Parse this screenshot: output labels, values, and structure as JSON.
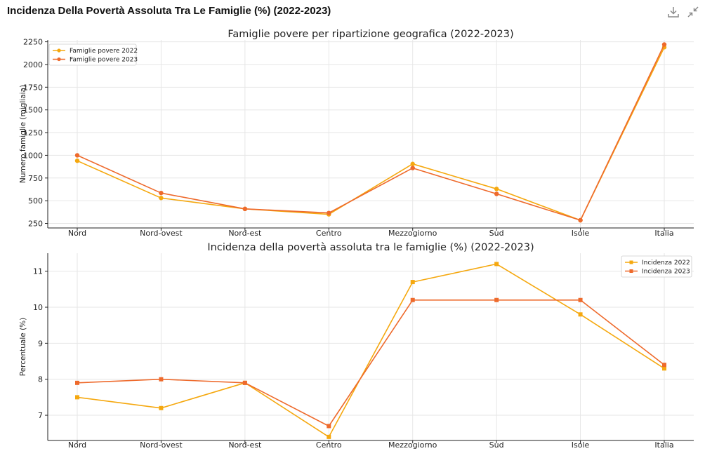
{
  "page": {
    "title": "Incidenza Della Povertà Assoluta Tra Le Famiglie (%) (2022-2023)"
  },
  "toolbar": {
    "download_icon": "download-icon",
    "collapse_icon": "collapse-icon"
  },
  "colors": {
    "series_2022": "#f5a80f",
    "series_2023": "#ee6a2c",
    "grid": "#e6e6e6",
    "axis": "#222222"
  },
  "chart_data": [
    {
      "type": "line",
      "title": "Famiglie povere per ripartizione geografica (2022-2023)",
      "xlabel": "",
      "ylabel": "Numero famiglie (migliaia)",
      "categories": [
        "Nord",
        "Nord-ovest",
        "Nord-est",
        "Centro",
        "Mezzogiorno",
        "Sud",
        "Isole",
        "Italia"
      ],
      "series": [
        {
          "name": "Famiglie povere 2022",
          "marker": "circle",
          "values": [
            940,
            530,
            410,
            350,
            905,
            630,
            285,
            2190
          ]
        },
        {
          "name": "Famiglie povere 2023",
          "marker": "circle",
          "values": [
            1000,
            585,
            410,
            365,
            860,
            575,
            285,
            2220
          ]
        }
      ],
      "ylim": [
        200,
        2270
      ],
      "yticks": [
        250,
        500,
        750,
        1000,
        1250,
        1500,
        1750,
        2000,
        2250
      ],
      "grid": true,
      "legend": "top-left"
    },
    {
      "type": "line",
      "title": "Incidenza della povertà assoluta tra le famiglie (%) (2022-2023)",
      "xlabel": "",
      "ylabel": "Percentuale (%)",
      "categories": [
        "Nord",
        "Nord-ovest",
        "Nord-est",
        "Centro",
        "Mezzogiorno",
        "Sud",
        "Isole",
        "Italia"
      ],
      "series": [
        {
          "name": "Incidenza 2022",
          "marker": "square",
          "values": [
            7.5,
            7.2,
            7.9,
            6.4,
            10.7,
            11.2,
            9.8,
            8.3
          ]
        },
        {
          "name": "Incidenza 2023",
          "marker": "square",
          "values": [
            7.9,
            8.0,
            7.9,
            6.7,
            10.2,
            10.2,
            10.2,
            8.4
          ]
        }
      ],
      "ylim": [
        6.3,
        11.5
      ],
      "yticks": [
        7,
        8,
        9,
        10,
        11
      ],
      "grid": true,
      "legend": "top-right"
    }
  ]
}
